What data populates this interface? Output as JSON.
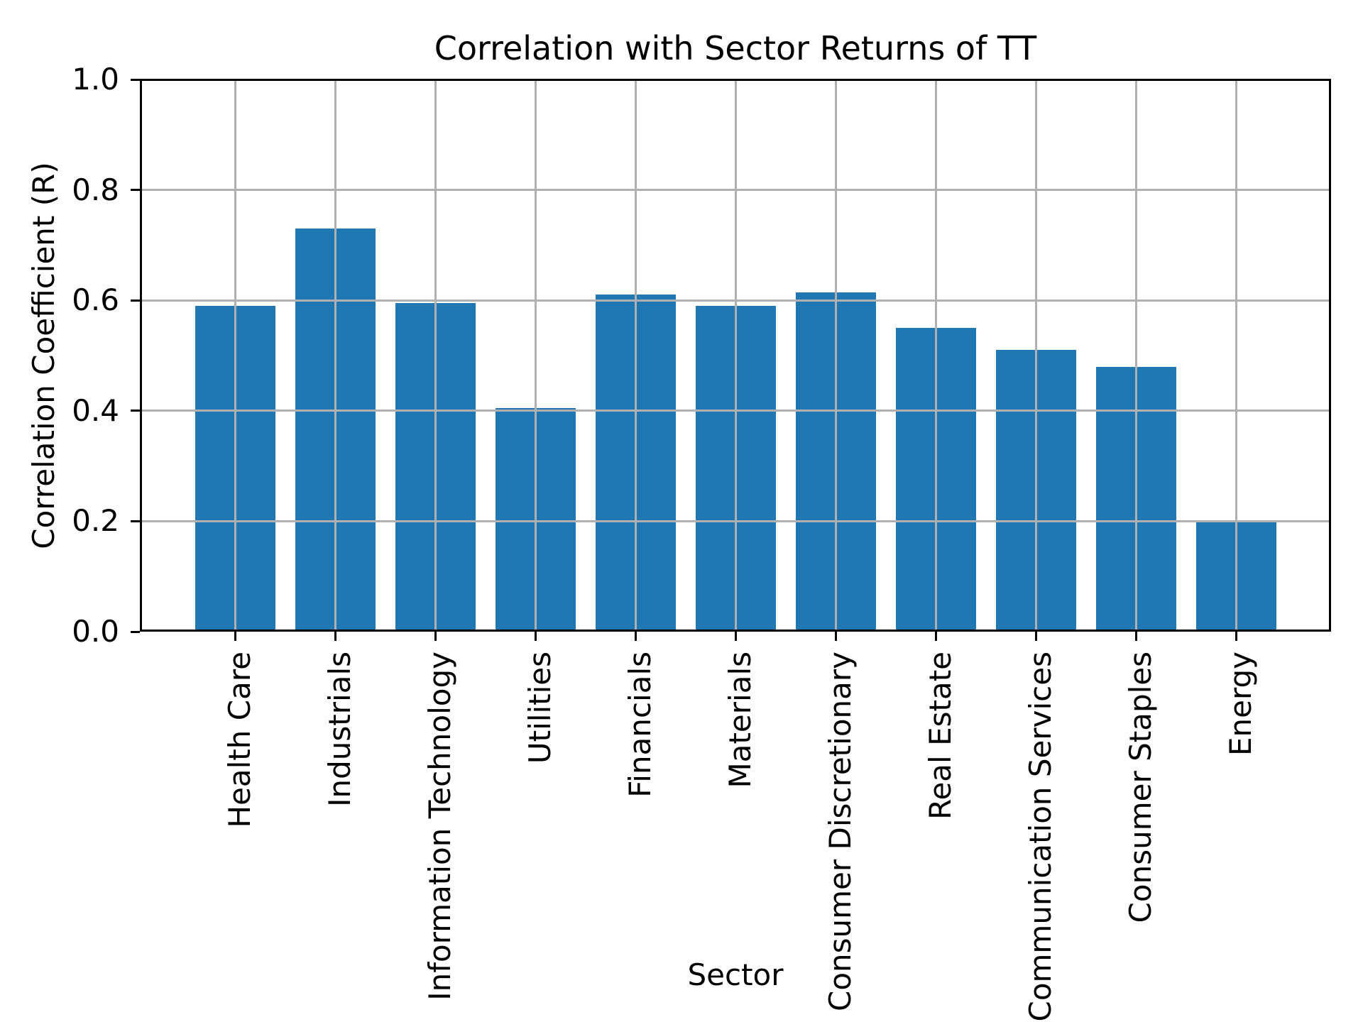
{
  "chart": {
    "title": "Correlation with Sector Returns of TT",
    "xlabel": "Sector",
    "ylabel": "Correlation Coefficient (R)"
  },
  "chart_data": {
    "type": "bar",
    "title": "Correlation with Sector Returns of TT",
    "xlabel": "Sector",
    "ylabel": "Correlation Coefficient (R)",
    "categories": [
      "Health Care",
      "Industrials",
      "Information Technology",
      "Utilities",
      "Financials",
      "Materials",
      "Consumer Discretionary",
      "Real Estate",
      "Communication Services",
      "Consumer Staples",
      "Energy"
    ],
    "values": [
      0.59,
      0.73,
      0.595,
      0.405,
      0.61,
      0.59,
      0.615,
      0.55,
      0.51,
      0.48,
      0.2
    ],
    "ylim": [
      0.0,
      1.0
    ],
    "yticks": [
      0.0,
      0.2,
      0.4,
      0.6,
      0.8,
      1.0
    ],
    "ytick_labels": [
      "0.0",
      "0.2",
      "0.4",
      "0.6",
      "0.8",
      "1.0"
    ],
    "grid": true,
    "legend": "none",
    "colors": {
      "bar": "#1f77b4",
      "grid": "#b0b0b0",
      "spine": "#000000",
      "background": "#ffffff",
      "text": "#000000"
    }
  }
}
